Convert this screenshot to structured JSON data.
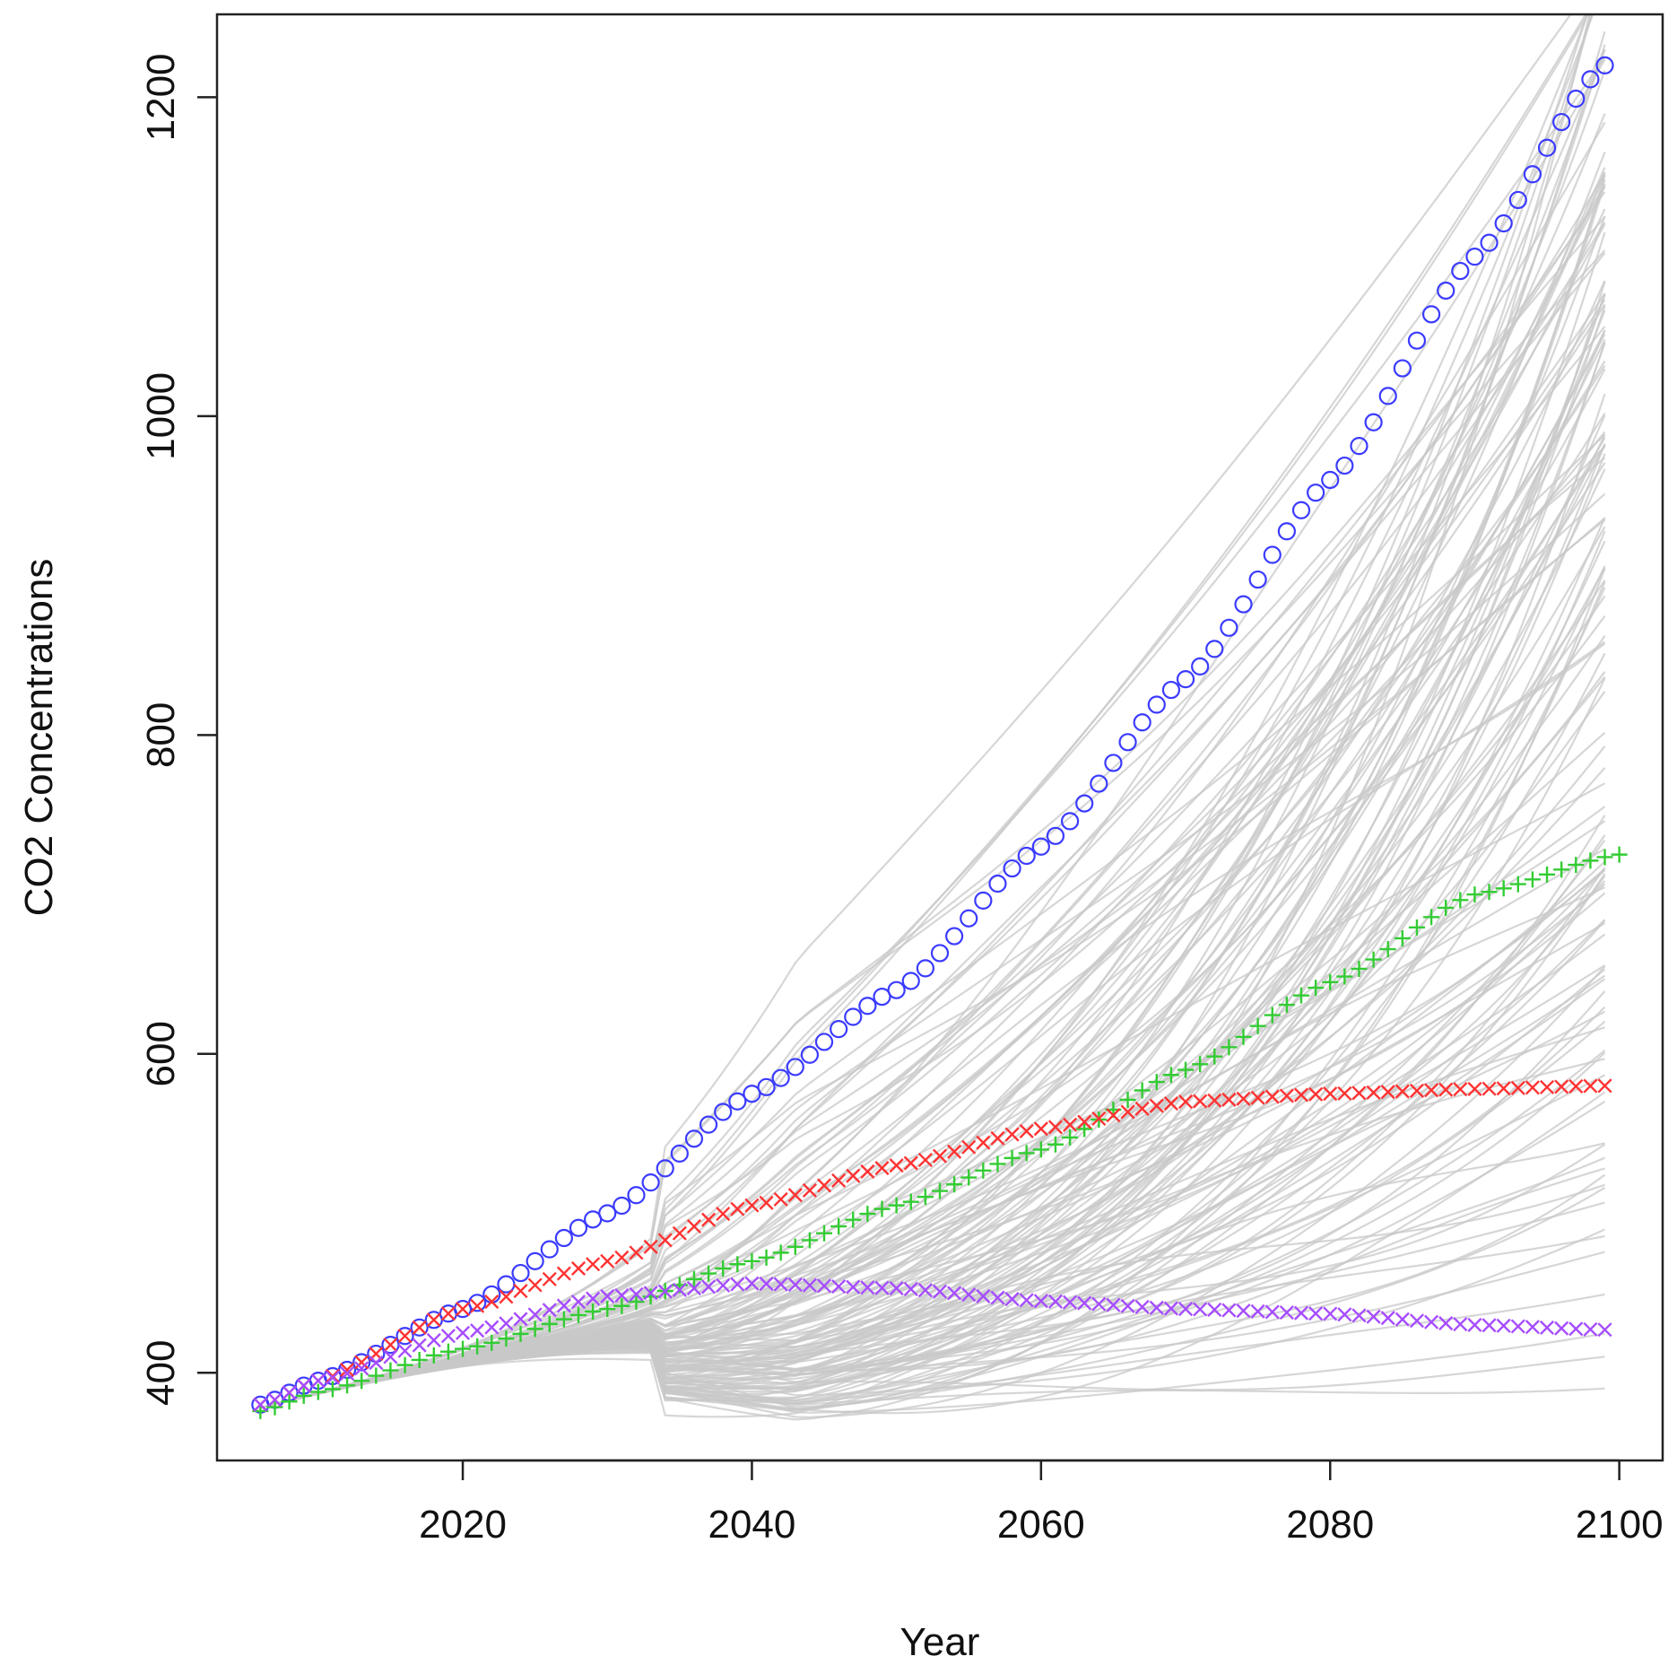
{
  "chart_data": {
    "type": "line",
    "title": "",
    "xlabel": "Year",
    "ylabel": "CO2 Concentrations",
    "xlim": [
      2003,
      2103
    ],
    "ylim": [
      345,
      1252
    ],
    "x_ticks": [
      "2020",
      "2040",
      "2060",
      "2080",
      "2100"
    ],
    "y_ticks": [
      "400",
      "600",
      "800",
      "1000",
      "1200"
    ],
    "x_tick_values": [
      2020,
      2040,
      2060,
      2080,
      2100
    ],
    "y_tick_values": [
      400,
      600,
      800,
      1000,
      1200
    ],
    "grid": false,
    "legend": "none",
    "x_range": [
      2006,
      2099
    ],
    "background_series": {
      "color": "#c8c8c8",
      "count": 150,
      "start_value": 378,
      "end_values_range": [
        375,
        1300
      ]
    },
    "series": [
      {
        "marker": "circle",
        "color": "#3b3bff",
        "x": [
          2006,
          2010,
          2020,
          2030,
          2040,
          2050,
          2060,
          2070,
          2080,
          2090,
          2099
        ],
        "y": [
          380,
          395,
          440,
          500,
          575,
          640,
          730,
          835,
          960,
          1100,
          1220
        ]
      },
      {
        "marker": "plus",
        "color": "#33cc33",
        "x": [
          2006,
          2010,
          2020,
          2030,
          2040,
          2050,
          2060,
          2070,
          2080,
          2090,
          2100
        ],
        "y": [
          376,
          388,
          415,
          440,
          470,
          505,
          540,
          590,
          645,
          700,
          725
        ]
      },
      {
        "marker": "x",
        "color": "#ff3333",
        "x": [
          2006,
          2010,
          2020,
          2030,
          2040,
          2050,
          2060,
          2070,
          2080,
          2090,
          2099
        ],
        "y": [
          380,
          395,
          440,
          470,
          505,
          530,
          553,
          570,
          575,
          578,
          580
        ]
      },
      {
        "marker": "x",
        "color": "#a64dff",
        "x": [
          2006,
          2010,
          2020,
          2030,
          2040,
          2050,
          2060,
          2070,
          2080,
          2090,
          2099
        ],
        "y": [
          380,
          395,
          425,
          448,
          456,
          453,
          445,
          440,
          437,
          430,
          427
        ]
      }
    ]
  }
}
